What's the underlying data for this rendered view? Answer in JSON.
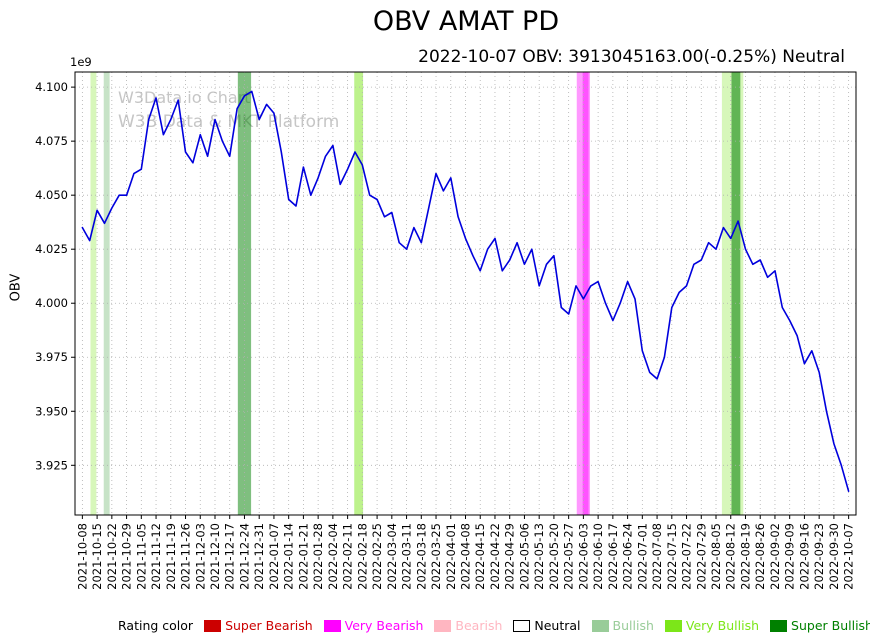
{
  "title": "OBV AMAT PD",
  "subtitle": "2022-10-07 OBV: 3913045163.00(-0.25%) Neutral",
  "watermark": {
    "line1": "W3Data.io Chart",
    "line2": "W3B Data & MKT Platform"
  },
  "axes": {
    "y_label": "OBV",
    "offset_label": "1e9",
    "y_ticks": [
      4.1,
      4.075,
      4.05,
      4.025,
      4.0,
      3.975,
      3.95,
      3.925
    ],
    "ylim": [
      3.902,
      4.107
    ]
  },
  "legend": {
    "prefix": "Rating color",
    "items": [
      {
        "label": "Super Bearish",
        "color": "#CC0000",
        "text_color": "#CC0000"
      },
      {
        "label": "Very Bearish",
        "color": "#FF00FF",
        "text_color": "#FF00FF"
      },
      {
        "label": "Bearish",
        "color": "#FFB6C1",
        "text_color": "#FFB6C1"
      },
      {
        "label": "Neutral",
        "color": "#FFFFFF",
        "text_color": "#000000",
        "border": "#000000"
      },
      {
        "label": "Bullish",
        "color": "#99CC99",
        "text_color": "#99CC99"
      },
      {
        "label": "Very Bullish",
        "color": "#7CE619",
        "text_color": "#7CE619"
      },
      {
        "label": "Super Bullish",
        "color": "#008000",
        "text_color": "#008000"
      }
    ]
  },
  "chart_data": {
    "type": "line",
    "title": "OBV AMAT PD",
    "ylabel": "OBV",
    "unit_multiplier": "1e9",
    "ylim": [
      3.902,
      4.107
    ],
    "grid": true,
    "line_color": "#0000DD",
    "x_tick_labels": [
      "2021-10-08",
      "2021-10-15",
      "2021-10-22",
      "2021-10-29",
      "2021-11-05",
      "2021-11-12",
      "2021-11-19",
      "2021-11-26",
      "2021-12-03",
      "2021-12-10",
      "2021-12-17",
      "2021-12-24",
      "2021-12-31",
      "2022-01-07",
      "2022-01-14",
      "2022-01-21",
      "2022-01-28",
      "2022-02-04",
      "2022-02-11",
      "2022-02-18",
      "2022-02-25",
      "2022-03-04",
      "2022-03-11",
      "2022-03-18",
      "2022-03-25",
      "2022-04-01",
      "2022-04-08",
      "2022-04-15",
      "2022-04-22",
      "2022-04-29",
      "2022-05-06",
      "2022-05-13",
      "2022-05-20",
      "2022-05-27",
      "2022-06-03",
      "2022-06-10",
      "2022-06-17",
      "2022-06-24",
      "2022-07-01",
      "2022-07-08",
      "2022-07-15",
      "2022-07-22",
      "2022-07-29",
      "2022-08-05",
      "2022-08-12",
      "2022-08-19",
      "2022-08-26",
      "2022-09-02",
      "2022-09-09",
      "2022-09-16",
      "2022-09-23",
      "2022-09-30",
      "2022-10-07"
    ],
    "points_per_interval": 2,
    "values": [
      4.035,
      4.029,
      4.043,
      4.037,
      4.044,
      4.05,
      4.05,
      4.06,
      4.062,
      4.085,
      4.095,
      4.078,
      4.085,
      4.094,
      4.07,
      4.065,
      4.078,
      4.068,
      4.085,
      4.075,
      4.068,
      4.09,
      4.096,
      4.098,
      4.085,
      4.092,
      4.088,
      4.07,
      4.048,
      4.045,
      4.063,
      4.05,
      4.058,
      4.068,
      4.073,
      4.055,
      4.062,
      4.07,
      4.064,
      4.05,
      4.048,
      4.04,
      4.042,
      4.028,
      4.025,
      4.035,
      4.028,
      4.044,
      4.06,
      4.052,
      4.058,
      4.04,
      4.03,
      4.022,
      4.015,
      4.025,
      4.03,
      4.015,
      4.02,
      4.028,
      4.018,
      4.025,
      4.008,
      4.018,
      4.022,
      3.998,
      3.995,
      4.008,
      4.002,
      4.008,
      4.01,
      4.0,
      3.992,
      4.0,
      4.01,
      4.002,
      3.978,
      3.968,
      3.965,
      3.975,
      3.998,
      4.005,
      4.008,
      4.018,
      4.02,
      4.028,
      4.025,
      4.035,
      4.03,
      4.038,
      4.025,
      4.018,
      4.02,
      4.012,
      4.015,
      3.998,
      3.992,
      3.985,
      3.972,
      3.978,
      3.968,
      3.95,
      3.935,
      3.925,
      3.913
    ],
    "rating_bands": [
      {
        "start": 0.55,
        "end": 0.95,
        "rating": "Very Bullish",
        "color": "#7CE619",
        "opacity": 0.3
      },
      {
        "start": 1.45,
        "end": 1.85,
        "rating": "Bullish",
        "color": "#99CC99",
        "opacity": 0.55
      },
      {
        "start": 10.55,
        "end": 11.45,
        "rating": "Super Bullish",
        "color": "#008000",
        "opacity": 0.5
      },
      {
        "start": 18.45,
        "end": 19.05,
        "rating": "Very Bullish",
        "color": "#7CE619",
        "opacity": 0.5
      },
      {
        "start": 33.55,
        "end": 34.45,
        "rating": "Very Bearish",
        "color": "#FF00FF",
        "opacity": 0.4
      },
      {
        "start": 33.95,
        "end": 34.35,
        "rating": "Very Bearish",
        "color": "#FF00FF",
        "opacity": 0.45
      },
      {
        "start": 43.4,
        "end": 44.85,
        "rating": "Very Bullish",
        "color": "#7CE619",
        "opacity": 0.3
      },
      {
        "start": 44.05,
        "end": 44.65,
        "rating": "Super Bullish",
        "color": "#008000",
        "opacity": 0.55
      }
    ]
  }
}
